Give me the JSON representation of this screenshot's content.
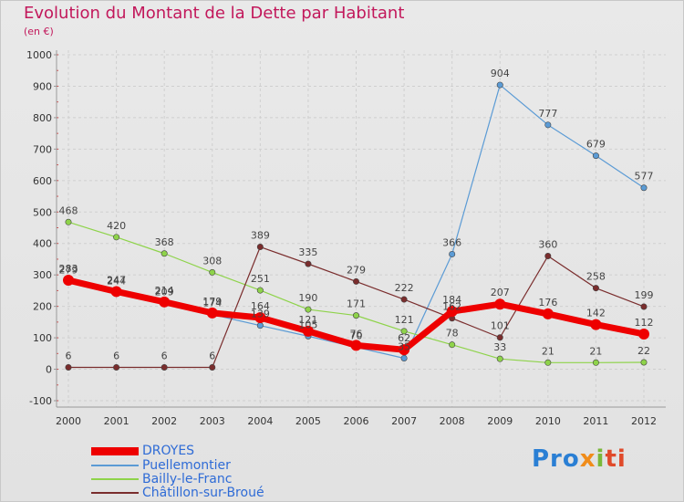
{
  "title": "Evolution du Montant de la Dette par Habitant",
  "unit": "(en €)",
  "chart_data": {
    "type": "line",
    "title": "Evolution du Montant de la Dette par Habitant",
    "ylabel": "(en €)",
    "ylim": [
      -100,
      1000
    ],
    "yticks": [
      -100,
      0,
      100,
      200,
      300,
      400,
      500,
      600,
      700,
      800,
      900,
      1000
    ],
    "categories": [
      "2000",
      "2001",
      "2002",
      "2003",
      "2004",
      "2005",
      "2006",
      "2007",
      "2008",
      "2009",
      "2010",
      "2011",
      "2012"
    ],
    "series": [
      {
        "name": "DROYES",
        "color": "#ee0000",
        "values": [
          283,
          247,
          214,
          179,
          164,
          121,
          76,
          62,
          184,
          207,
          176,
          142,
          112
        ],
        "labels": [
          "283",
          "247",
          "214",
          "179",
          "164",
          "121",
          "76",
          "62",
          "184",
          "207",
          "176",
          "142",
          "112"
        ]
      },
      {
        "name": "Puellemontier",
        "color": "#5b9bd5",
        "values": [
          279,
          244,
          209,
          174,
          139,
          105,
          70,
          35,
          366,
          904,
          777,
          679,
          577
        ],
        "labels": [
          "279",
          "244",
          "209",
          "174",
          "139",
          "105",
          "70",
          "35",
          "366",
          "904",
          "777",
          "679",
          "577"
        ]
      },
      {
        "name": "Bailly-le-Franc",
        "color": "#8ed34a",
        "values": [
          468,
          420,
          368,
          308,
          251,
          190,
          171,
          121,
          78,
          33,
          21,
          21,
          22
        ],
        "labels": [
          "468",
          "420",
          "368",
          "308",
          "251",
          "190",
          "171",
          "121",
          "78",
          "33",
          "21",
          "21",
          "22"
        ]
      },
      {
        "name": "Châtillon-sur-Broué",
        "color": "#7a2d2d",
        "values": [
          6,
          6,
          6,
          6,
          389,
          335,
          279,
          222,
          162,
          101,
          360,
          258,
          199
        ],
        "labels": [
          "6",
          "6",
          "6",
          "6",
          "389",
          "335",
          "279",
          "222",
          "162",
          "101",
          "360",
          "258",
          "199"
        ]
      }
    ]
  },
  "legend": [
    {
      "name": "DROYES",
      "color": "#ee0000"
    },
    {
      "name": "Puellemontier",
      "color": "#5b9bd5"
    },
    {
      "name": "Bailly-le-Franc",
      "color": "#8ed34a"
    },
    {
      "name": "Châtillon-sur-Broué",
      "color": "#7a2d2d"
    }
  ],
  "logo": {
    "p1": "Pro",
    "p2": "x",
    "p3": "i",
    "p4": "ti"
  }
}
